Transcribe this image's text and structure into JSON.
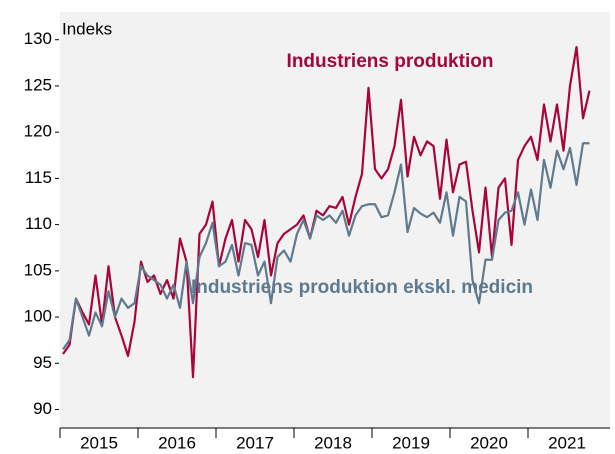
{
  "chart_data": {
    "type": "line",
    "y_label": "Indeks",
    "categories": [
      null,
      null,
      null,
      null,
      null,
      null,
      "2015",
      null,
      null,
      null,
      null,
      null,
      null,
      null,
      null,
      null,
      null,
      null,
      "2016",
      null,
      null,
      null,
      null,
      null,
      null,
      null,
      null,
      null,
      null,
      null,
      "2017",
      null,
      null,
      null,
      null,
      null,
      null,
      null,
      null,
      null,
      null,
      null,
      "2018",
      null,
      null,
      null,
      null,
      null,
      null,
      null,
      null,
      null,
      null,
      null,
      "2019",
      null,
      null,
      null,
      null,
      null,
      null,
      null,
      null,
      null,
      null,
      null,
      "2020",
      null,
      null,
      null,
      null,
      null,
      null,
      null,
      null,
      null,
      null,
      null,
      "2021",
      null,
      null,
      null
    ],
    "series": [
      {
        "name": "Industriens produktion",
        "color": "#a8053a",
        "values": [
          96,
          97,
          102,
          100.5,
          99.2,
          104.5,
          99.2,
          105.5,
          100,
          98,
          95.8,
          99.5,
          106,
          103.8,
          104.5,
          102.5,
          104,
          102,
          108.5,
          106,
          93.5,
          109,
          110,
          112.5,
          105.5,
          108.5,
          110.5,
          106,
          110.5,
          109.5,
          106.5,
          110.5,
          104.5,
          108,
          109,
          109.5,
          110,
          111,
          108.5,
          111.5,
          111,
          112,
          111.8,
          113,
          110,
          113,
          115.5,
          124.8,
          116,
          115,
          116,
          118.5,
          123.5,
          115.2,
          119.5,
          117.5,
          119,
          118.5,
          112.8,
          119.2,
          113.5,
          116.5,
          116.8,
          111.5,
          107,
          114,
          106.5,
          114,
          115,
          107.8,
          117,
          118.5,
          119.5,
          117,
          123,
          119,
          123,
          118,
          125,
          129.2,
          121.5,
          124.5
        ]
      },
      {
        "name": "Industriens produktion ekskl. medicin",
        "color": "#5f7a8e",
        "values": [
          96.5,
          97.5,
          102,
          100,
          98,
          100.5,
          99,
          102.8,
          100,
          102,
          101,
          101.5,
          105.5,
          104.5,
          104,
          103.5,
          102,
          103.5,
          101,
          106,
          101.5,
          106.5,
          108,
          110.2,
          105.5,
          106,
          107.8,
          104.5,
          108,
          107.8,
          104.5,
          106,
          101.5,
          106.5,
          107.2,
          106,
          109,
          110.5,
          108.5,
          111,
          110.5,
          111,
          110.2,
          111.5,
          108.8,
          111,
          112,
          112.2,
          112.2,
          110.8,
          111,
          113.5,
          116.5,
          109.2,
          111.8,
          111.2,
          110.8,
          111.3,
          110.2,
          113.5,
          108.8,
          113,
          112.5,
          104,
          101.5,
          106.2,
          106.2,
          110.5,
          111.3,
          111.5,
          113.5,
          110,
          113.8,
          110.5,
          117,
          114,
          118,
          116,
          118.3,
          114.3,
          118.8,
          118.8
        ]
      }
    ],
    "ylim": [
      88,
      133
    ],
    "yticks": [
      90,
      95,
      100,
      105,
      110,
      115,
      120,
      125,
      130
    ],
    "grid": false
  }
}
